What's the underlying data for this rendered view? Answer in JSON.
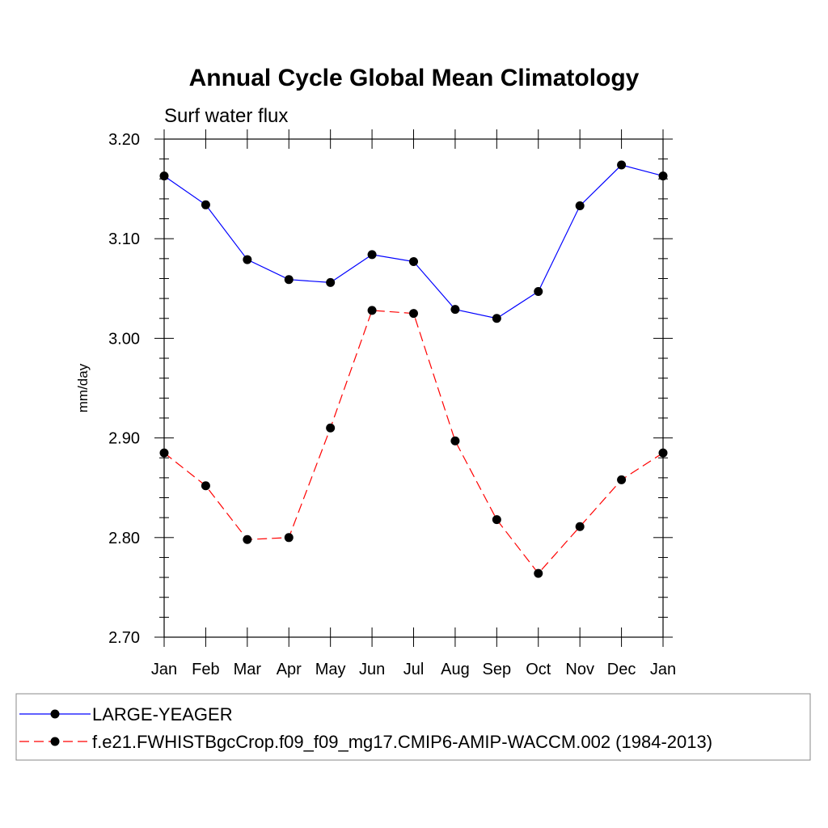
{
  "chart_data": {
    "type": "line",
    "title": "Annual Cycle Global Mean Climatology",
    "subtitle": "Surf water flux",
    "xlabel": "",
    "ylabel": "mm/day",
    "categories": [
      "Jan",
      "Feb",
      "Mar",
      "Apr",
      "May",
      "Jun",
      "Jul",
      "Aug",
      "Sep",
      "Oct",
      "Nov",
      "Dec",
      "Jan"
    ],
    "ylim": [
      2.7,
      3.2
    ],
    "yticks": [
      "2.70",
      "2.80",
      "2.90",
      "3.00",
      "3.10",
      "3.20"
    ],
    "grid": false,
    "legend_position": "bottom",
    "series": [
      {
        "name": "LARGE-YEAGER",
        "color": "#0000ff",
        "style": "solid",
        "values": [
          3.163,
          3.134,
          3.079,
          3.059,
          3.056,
          3.084,
          3.077,
          3.029,
          3.02,
          3.047,
          3.133,
          3.174,
          3.163
        ]
      },
      {
        "name": "f.e21.FWHISTBgcCrop.f09_f09_mg17.CMIP6-AMIP-WACCM.002 (1984-2013)",
        "color": "#ff0000",
        "style": "dashed",
        "values": [
          2.885,
          2.852,
          2.798,
          2.8,
          2.91,
          3.028,
          3.025,
          2.897,
          2.818,
          2.764,
          2.811,
          2.858,
          2.885
        ]
      }
    ]
  }
}
